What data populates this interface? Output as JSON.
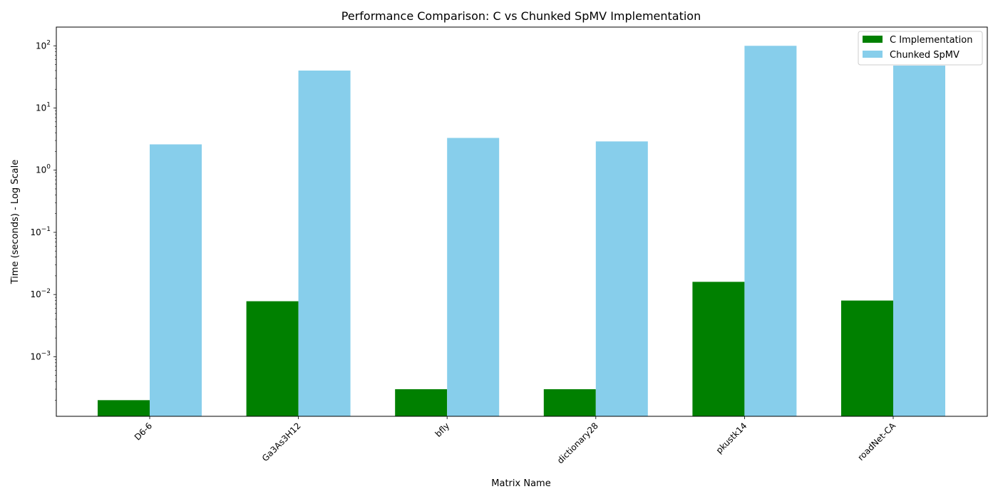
{
  "chart_data": {
    "type": "bar",
    "title": "Performance Comparison: C vs Chunked SpMV Implementation",
    "xlabel": "Matrix Name",
    "ylabel": "Time (seconds) - Log Scale",
    "yscale": "log",
    "ylim": [
      0.00011,
      200
    ],
    "y_ticks": [
      {
        "value": 0.001,
        "base": "10",
        "exp": "−3"
      },
      {
        "value": 0.01,
        "base": "10",
        "exp": "−2"
      },
      {
        "value": 0.1,
        "base": "10",
        "exp": "−1"
      },
      {
        "value": 1,
        "base": "10",
        "exp": "0"
      },
      {
        "value": 10,
        "base": "10",
        "exp": "1"
      },
      {
        "value": 100,
        "base": "10",
        "exp": "2"
      }
    ],
    "categories": [
      "D6-6",
      "Ga3As3H12",
      "bfly",
      "dictionary28",
      "pkustk14",
      "roadNet-CA"
    ],
    "series": [
      {
        "name": "C Implementation",
        "color": "#008000",
        "values": [
          0.0002,
          0.0078,
          0.0003,
          0.0003,
          0.016,
          0.008
        ]
      },
      {
        "name": "Chunked SpMV",
        "color": "#87ceeb",
        "values": [
          2.6,
          40,
          3.3,
          2.9,
          100,
          48
        ]
      }
    ],
    "legend_position": "top-right",
    "grid": false
  }
}
